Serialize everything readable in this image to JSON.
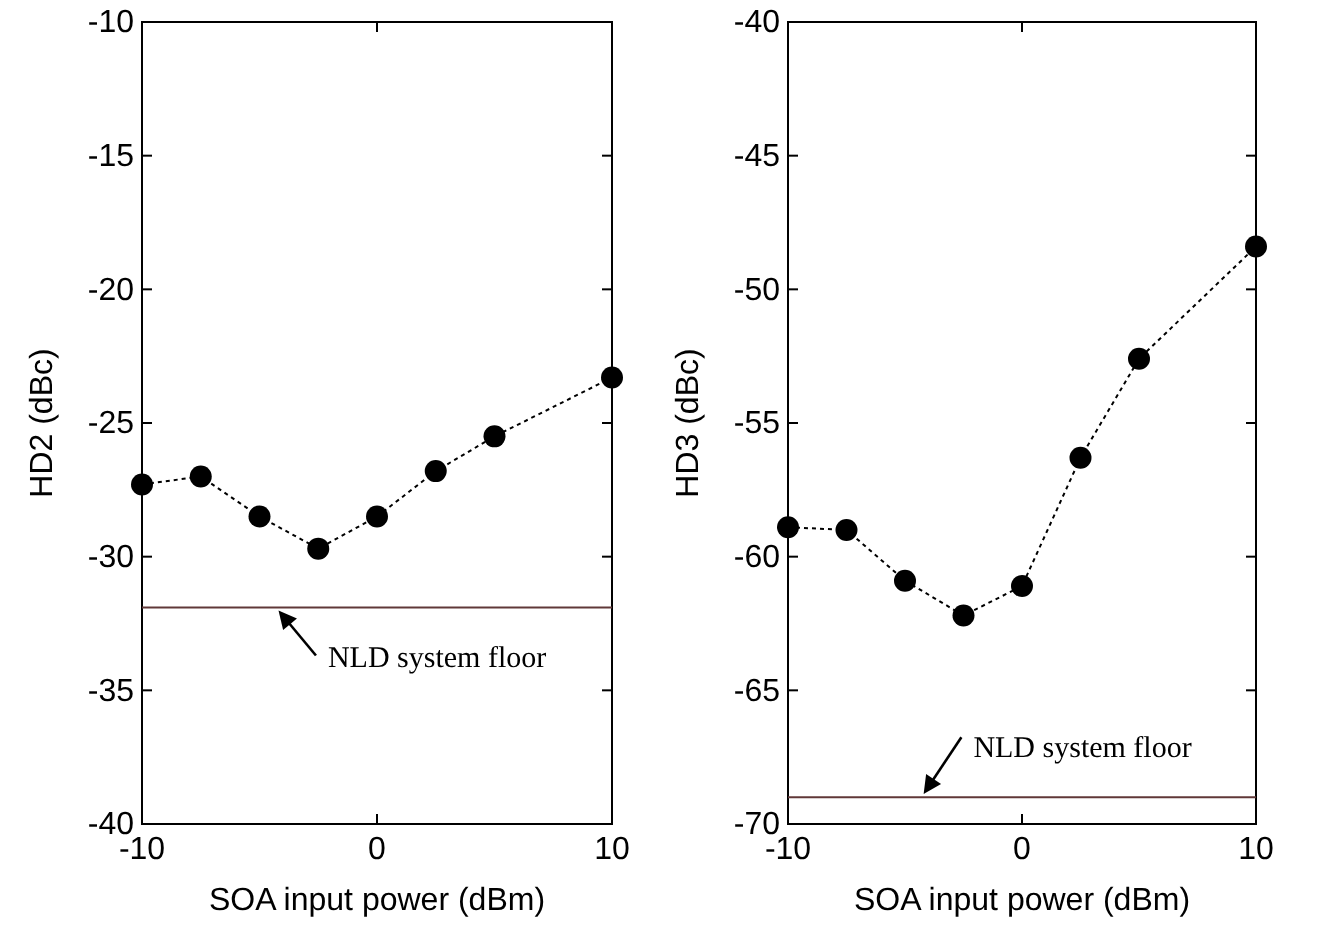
{
  "chart_data": [
    {
      "type": "line",
      "x": [
        -10,
        -7.5,
        -5,
        -2.5,
        0,
        2.5,
        5,
        10
      ],
      "series": [
        {
          "color": "#000000",
          "values": [
            -27.3,
            -27.0,
            -28.5,
            -29.7,
            -28.5,
            -26.8,
            -25.5,
            -23.3
          ]
        }
      ],
      "xlabel": "SOA input power (dBm)",
      "ylabel": "HD2 (dBc)",
      "xlim": [
        -10,
        10
      ],
      "xticks": [
        -10,
        0,
        10
      ],
      "ylim": [
        -40,
        -10
      ],
      "yticks": [
        -40,
        -35,
        -30,
        -25,
        -20,
        -15,
        -10
      ],
      "ref_lines": [
        {
          "axis": "y",
          "value": -31.9,
          "color": "#603838"
        }
      ],
      "annotations": [
        {
          "text": "NLD system floor",
          "x": -4.3,
          "y": -31.9
        }
      ],
      "marker": "circle",
      "line_style": "dotted",
      "grid": false
    },
    {
      "type": "line",
      "x": [
        -10,
        -7.5,
        -5,
        -2.5,
        0,
        2.5,
        5,
        10
      ],
      "series": [
        {
          "color": "#000000",
          "values": [
            -58.9,
            -59.0,
            -60.9,
            -62.2,
            -61.1,
            -56.3,
            -52.6,
            -48.4
          ]
        }
      ],
      "xlabel": "SOA input power (dBm)",
      "ylabel": "HD3 (dBc)",
      "xlim": [
        -10,
        10
      ],
      "xticks": [
        -10,
        0,
        10
      ],
      "ylim": [
        -70,
        -40
      ],
      "yticks": [
        -70,
        -65,
        -60,
        -55,
        -50,
        -45,
        -40
      ],
      "ref_lines": [
        {
          "axis": "y",
          "value": -69.0,
          "color": "#603838"
        }
      ],
      "annotations": [
        {
          "text": "NLD system floor",
          "x": -4.3,
          "y": -69.0
        }
      ],
      "marker": "circle",
      "line_style": "dotted",
      "grid": false
    }
  ]
}
